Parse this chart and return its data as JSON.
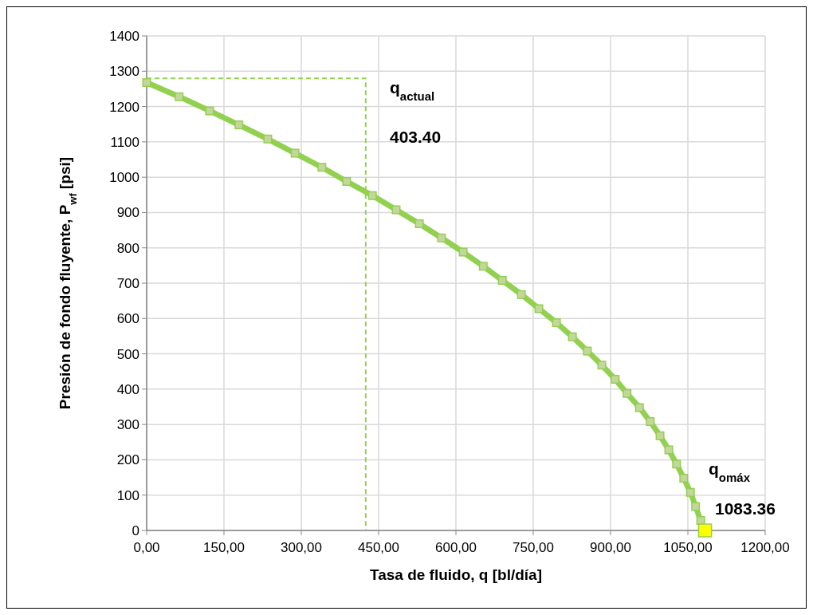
{
  "chart_data": {
    "type": "line",
    "xlabel": "Tasa de fluido, q [bl/día]",
    "ylabel": "Presión de fondo fluyente, P$_{wf}$  [psi]",
    "xlim": [
      0,
      1200
    ],
    "xticks": [
      {
        "value": 0,
        "label": "0,00"
      },
      {
        "value": 150,
        "label": "150,00"
      },
      {
        "value": 300,
        "label": "300,00"
      },
      {
        "value": 450,
        "label": "450,00"
      },
      {
        "value": 600,
        "label": "600,00"
      },
      {
        "value": 750,
        "label": "750,00"
      },
      {
        "value": 900,
        "label": "900,00"
      },
      {
        "value": 1050,
        "label": "1050,00"
      },
      {
        "value": 1200,
        "label": "1200,00"
      }
    ],
    "ylim": [
      0,
      1400
    ],
    "yticks": [
      0,
      100,
      200,
      300,
      400,
      500,
      600,
      700,
      800,
      900,
      1000,
      1100,
      1200,
      1300,
      1400
    ],
    "grid": true,
    "series": [
      {
        "color": "#92d050",
        "marker": "none",
        "line_style": "dashed",
        "x": [
          0,
          425,
          425
        ],
        "values": [
          1280,
          1280,
          0
        ]
      },
      {
        "color": "#92d050",
        "marker": "square",
        "line_style": "solid",
        "x": [
          0,
          63,
          122,
          179,
          235,
          288,
          340,
          388,
          438,
          484,
          529,
          572,
          614,
          653,
          690,
          727,
          761,
          795,
          826,
          855,
          883,
          909,
          932,
          956,
          977,
          996,
          1013,
          1028,
          1042,
          1055,
          1065,
          1075
        ],
        "values": [
          1268,
          1228,
          1188,
          1148,
          1108,
          1068,
          1028,
          988,
          948,
          908,
          868,
          828,
          788,
          748,
          708,
          668,
          628,
          588,
          548,
          508,
          468,
          428,
          388,
          348,
          308,
          268,
          228,
          188,
          148,
          108,
          68,
          28
        ]
      },
      {
        "type": "scatter",
        "color": "#ffff00",
        "marker": "square",
        "x": [
          1083.36
        ],
        "values": [
          0
        ]
      }
    ],
    "annotations": [
      "q$_{actual}$",
      "403.40",
      "q$_{omáx}$",
      "1083.36"
    ]
  }
}
